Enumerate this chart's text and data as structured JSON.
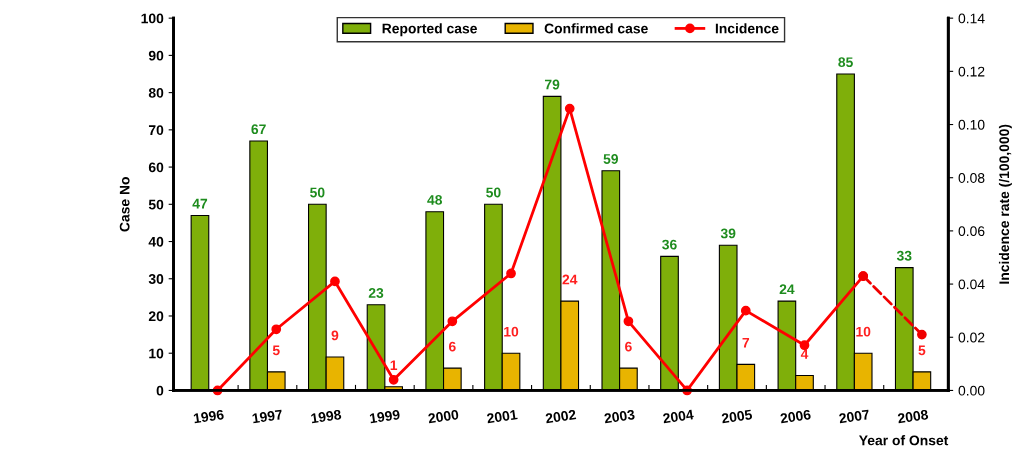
{
  "chart_data": {
    "type": "bar",
    "xlabel": "Year of Onset",
    "ylabel": "Case No",
    "y2label": "Incidence rate (/100,000)",
    "categories": [
      "1996",
      "1997",
      "1998",
      "1999",
      "2000",
      "2001",
      "2002",
      "2003",
      "2004",
      "2005",
      "2006",
      "2007",
      "2008"
    ],
    "series": [
      {
        "name": "Reported case",
        "color": "#7faf0a",
        "values": [
          47,
          67,
          50,
          23,
          48,
          50,
          79,
          59,
          36,
          39,
          24,
          85,
          33
        ],
        "value_labels": [
          "47",
          "67",
          "50",
          "23",
          "48",
          "50",
          "79",
          "59",
          "36",
          "39",
          "24",
          "85",
          "33"
        ]
      },
      {
        "name": "Confirmed case",
        "color": "#e8b400",
        "values": [
          0,
          5,
          9,
          1,
          6,
          10,
          24,
          6,
          0,
          7,
          4,
          10,
          5
        ],
        "value_labels": [
          null,
          "5",
          "9",
          "1",
          "6",
          "10",
          "24",
          "6",
          null,
          "7",
          "4",
          "10",
          "5"
        ]
      },
      {
        "name": "Incidence",
        "type": "line",
        "axis": "y2",
        "color": "#ff0000",
        "line_style": "solid",
        "values": [
          0.0,
          0.023,
          0.041,
          0.004,
          0.026,
          0.044,
          0.106,
          0.026,
          0.0,
          0.03,
          0.017,
          0.043,
          null
        ]
      },
      {
        "type": "line",
        "axis": "y2",
        "color": "#f00000",
        "line_style": "dashed",
        "values": [
          null,
          null,
          null,
          null,
          null,
          null,
          null,
          null,
          null,
          null,
          null,
          0.043,
          0.021
        ]
      }
    ],
    "ylim": [
      0,
      100
    ],
    "yticks": [
      0,
      10,
      20,
      30,
      40,
      50,
      60,
      70,
      80,
      90,
      100
    ],
    "y2lim": [
      0,
      0.14
    ],
    "y2ticks": [
      {
        "value": 0,
        "label": "0.00"
      },
      {
        "value": 0.02,
        "label": "0.02"
      },
      {
        "value": 0.04,
        "label": "0.04"
      },
      {
        "value": 0.06,
        "label": "0.06"
      },
      {
        "value": 0.08,
        "label": "0.08"
      },
      {
        "value": 0.1,
        "label": "0.10"
      },
      {
        "value": 0.12,
        "label": "0.12"
      },
      {
        "value": 0.14,
        "label": "0.14"
      }
    ],
    "marker": "circle",
    "grid": false,
    "legend": "top"
  }
}
